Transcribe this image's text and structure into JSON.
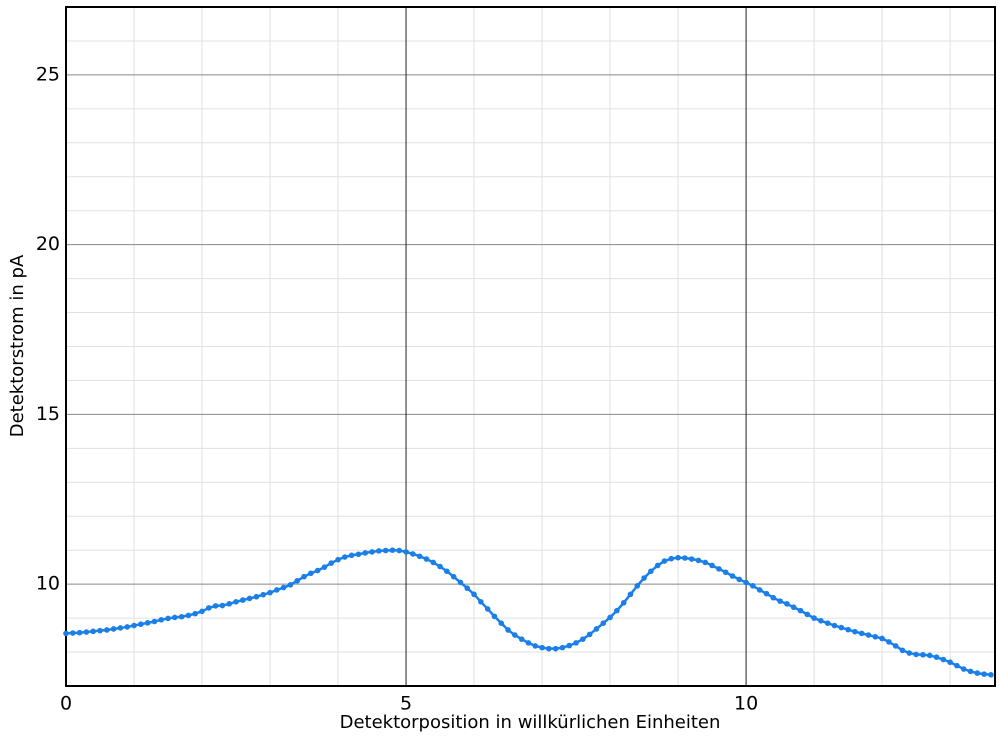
{
  "chart_data": {
    "type": "line",
    "xlabel": "Detektorposition in willkürlichen Einheiten",
    "ylabel": "Detektorstrom in pA",
    "x": [
      0,
      0.1,
      0.2,
      0.3,
      0.4,
      0.5,
      0.6,
      0.7,
      0.8,
      0.9,
      1,
      1.1,
      1.2,
      1.3,
      1.4,
      1.5,
      1.6,
      1.7,
      1.8,
      1.9,
      2,
      2.1,
      2.2,
      2.3,
      2.4,
      2.5,
      2.6,
      2.7,
      2.8,
      2.9,
      3,
      3.1,
      3.2,
      3.3,
      3.4,
      3.5,
      3.6,
      3.7,
      3.8,
      3.9,
      4,
      4.1,
      4.2,
      4.3,
      4.4,
      4.5,
      4.6,
      4.7,
      4.8,
      4.9,
      5,
      5.1,
      5.2,
      5.3,
      5.4,
      5.5,
      5.6,
      5.7,
      5.8,
      5.9,
      6,
      6.1,
      6.2,
      6.3,
      6.4,
      6.5,
      6.6,
      6.7,
      6.8,
      6.9,
      7,
      7.1,
      7.2,
      7.3,
      7.4,
      7.5,
      7.6,
      7.7,
      7.8,
      7.9,
      8,
      8.1,
      8.2,
      8.3,
      8.4,
      8.5,
      8.6,
      8.7,
      8.8,
      8.9,
      9,
      9.1,
      9.2,
      9.3,
      9.4,
      9.5,
      9.6,
      9.7,
      9.8,
      9.9,
      10,
      10.1,
      10.2,
      10.3,
      10.4,
      10.5,
      10.6,
      10.7,
      10.8,
      10.9,
      11,
      11.1,
      11.2,
      11.3,
      11.4,
      11.5,
      11.6,
      11.7,
      11.8,
      11.9,
      12,
      12.1,
      12.2,
      12.3,
      12.4,
      12.5,
      12.6,
      12.7,
      12.8,
      12.9,
      13,
      13.1,
      13.2,
      13.3,
      13.4,
      13.5,
      13.6
    ],
    "series": [
      {
        "name": "Detektorstrom",
        "color": "#1a7fe8",
        "values": [
          8.55,
          8.56,
          8.57,
          8.59,
          8.61,
          8.63,
          8.65,
          8.68,
          8.71,
          8.74,
          8.78,
          8.82,
          8.86,
          8.9,
          8.95,
          8.99,
          9.02,
          9.04,
          9.08,
          9.13,
          9.2,
          9.3,
          9.36,
          9.37,
          9.42,
          9.48,
          9.53,
          9.58,
          9.63,
          9.69,
          9.75,
          9.83,
          9.9,
          9.98,
          10.1,
          10.22,
          10.32,
          10.4,
          10.5,
          10.62,
          10.72,
          10.8,
          10.85,
          10.88,
          10.92,
          10.95,
          10.98,
          10.99,
          11.0,
          10.99,
          10.95,
          10.89,
          10.82,
          10.74,
          10.64,
          10.52,
          10.38,
          10.22,
          10.05,
          9.88,
          9.7,
          9.48,
          9.27,
          9.05,
          8.85,
          8.65,
          8.5,
          8.38,
          8.27,
          8.18,
          8.13,
          8.1,
          8.1,
          8.13,
          8.19,
          8.27,
          8.38,
          8.52,
          8.68,
          8.85,
          9.02,
          9.22,
          9.45,
          9.7,
          9.95,
          10.18,
          10.38,
          10.55,
          10.68,
          10.75,
          10.78,
          10.77,
          10.74,
          10.7,
          10.64,
          10.55,
          10.45,
          10.35,
          10.24,
          10.14,
          10.05,
          9.95,
          9.83,
          9.72,
          9.6,
          9.5,
          9.42,
          9.32,
          9.22,
          9.11,
          9.0,
          8.92,
          8.85,
          8.78,
          8.72,
          8.66,
          8.6,
          8.55,
          8.5,
          8.45,
          8.4,
          8.3,
          8.18,
          8.05,
          7.97,
          7.93,
          7.92,
          7.9,
          7.85,
          7.78,
          7.7,
          7.6,
          7.5,
          7.43,
          7.38,
          7.35,
          7.33
        ]
      }
    ],
    "xlim": [
      0,
      13.66
    ],
    "ylim": [
      7,
      27
    ],
    "xticks": [
      0,
      5,
      10
    ],
    "yticks": [
      10,
      15,
      20,
      25
    ],
    "x_minor_ticks": [
      1,
      2,
      3,
      4,
      6,
      7,
      8,
      9,
      11,
      12,
      13
    ],
    "y_minor_ticks": [
      8,
      9,
      11,
      12,
      13,
      14,
      16,
      17,
      18,
      19,
      21,
      22,
      23,
      24,
      26
    ],
    "grid": true,
    "markers": true
  }
}
